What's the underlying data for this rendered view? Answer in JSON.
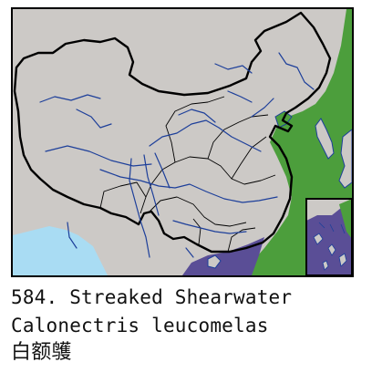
{
  "species": {
    "number_title": "584. Streaked Shearwater",
    "scientific_name": "Calonectris leucomelas",
    "chinese_name": "白额鹱"
  },
  "map": {
    "colors": {
      "land": "#ccc9c6",
      "sea": "#a9dcf3",
      "summer_range": "#4c9e3c",
      "winter_range": "#5a4e96",
      "rivers": "#1d3f9a",
      "borders": "#000000"
    }
  }
}
